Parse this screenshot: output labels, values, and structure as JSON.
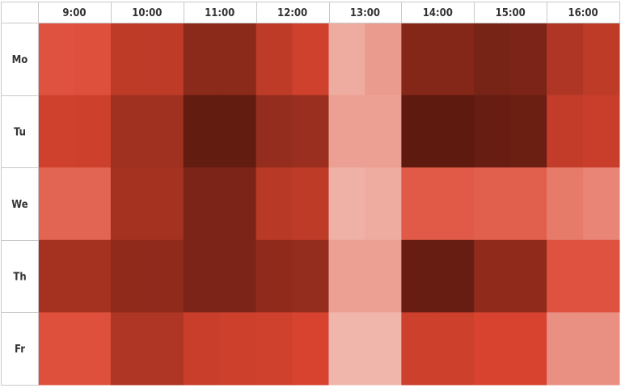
{
  "chart_data": {
    "type": "heatmap",
    "title": "",
    "xlabel": "",
    "ylabel": "",
    "x_ticks": [
      "9:00",
      "10:00",
      "11:00",
      "12:00",
      "13:00",
      "14:00",
      "15:00",
      "16:00"
    ],
    "y_ticks": [
      "Mo",
      "Tu",
      "We",
      "Th",
      "Fr"
    ],
    "columns_per_tick": 2,
    "values": [
      [
        0.45,
        0.46,
        0.62,
        0.62,
        0.82,
        0.82,
        0.62,
        0.55,
        0.12,
        0.18,
        0.85,
        0.85,
        0.9,
        0.88,
        0.68,
        0.62
      ],
      [
        0.55,
        0.56,
        0.74,
        0.74,
        0.98,
        0.98,
        0.78,
        0.76,
        0.16,
        0.16,
        1.0,
        1.0,
        0.96,
        0.95,
        0.6,
        0.58
      ],
      [
        0.38,
        0.38,
        0.72,
        0.72,
        0.88,
        0.88,
        0.64,
        0.62,
        0.1,
        0.12,
        0.42,
        0.42,
        0.4,
        0.4,
        0.3,
        0.26
      ],
      [
        0.72,
        0.72,
        0.8,
        0.8,
        0.88,
        0.88,
        0.8,
        0.78,
        0.16,
        0.16,
        0.96,
        0.96,
        0.8,
        0.8,
        0.45,
        0.45
      ],
      [
        0.46,
        0.46,
        0.68,
        0.68,
        0.58,
        0.56,
        0.55,
        0.52,
        0.08,
        0.08,
        0.56,
        0.56,
        0.52,
        0.52,
        0.22,
        0.22
      ]
    ],
    "color_low": "#f4cbc2",
    "color_high": "#5e1a0f",
    "color_mid": "#dc4530",
    "grid": true
  }
}
